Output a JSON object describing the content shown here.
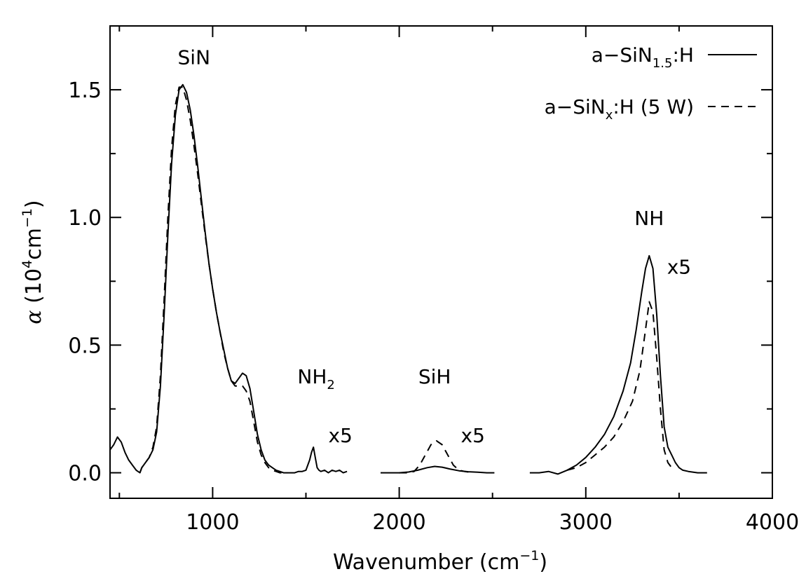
{
  "chart_data": {
    "type": "line",
    "xlabel": "Wavenumber (cm",
    "xlabel_sup": "−1",
    "xlabel_end": ")",
    "ylabel_sym": "α",
    "ylabel": "(10",
    "ylabel_sup1": "4",
    "ylabel_mid": "cm",
    "ylabel_sup2": "−1",
    "ylabel_end": ")",
    "xlim": [
      450,
      4000
    ],
    "ylim": [
      -0.1,
      1.75
    ],
    "x_ticks": [
      1000,
      2000,
      3000,
      4000
    ],
    "x_tick_labels": [
      "1000",
      "2000",
      "3000",
      "4000"
    ],
    "y_ticks": [
      0.0,
      0.5,
      1.0,
      1.5
    ],
    "y_tick_labels": [
      "0.0",
      "0.5",
      "1.0",
      "1.5"
    ],
    "legend": {
      "placement": "top-right",
      "entries": [
        {
          "text": "a−SiN",
          "sub": "1.5",
          "suffix": ":H",
          "style": "solid"
        },
        {
          "text": "a−SiN",
          "sub": "x",
          "suffix": ":H (5 W)",
          "style": "dashed"
        }
      ]
    },
    "annotations": [
      {
        "text": "SiN",
        "sub": "",
        "x": 900,
        "y": 1.6
      },
      {
        "text": "NH",
        "sub": "2",
        "x": 1555,
        "y": 0.35
      },
      {
        "text": "x5",
        "sub": "",
        "x": 1685,
        "y": 0.12
      },
      {
        "text": "SiH",
        "sub": "",
        "x": 2190,
        "y": 0.35
      },
      {
        "text": "x5",
        "sub": "",
        "x": 2395,
        "y": 0.12
      },
      {
        "text": "NH",
        "sub": "",
        "x": 3340,
        "y": 0.97
      },
      {
        "text": "x5",
        "sub": "",
        "x": 3500,
        "y": 0.78
      }
    ],
    "series": [
      {
        "name": "a−SiN1.5:H",
        "style": "solid",
        "segments": [
          {
            "x": [
              450,
              470,
              490,
              510,
              530,
              550,
              570,
              590,
              610,
              620,
              640,
              660,
              680,
              700,
              720,
              740,
              760,
              780,
              800,
              820,
              840,
              860,
              880,
              900,
              920,
              940,
              960,
              980,
              1000,
              1020,
              1040,
              1060,
              1080,
              1100,
              1120,
              1140,
              1160,
              1180,
              1200,
              1220,
              1240,
              1260,
              1280,
              1300,
              1320,
              1340,
              1360,
              1380,
              1400,
              1420,
              1440,
              1460,
              1480,
              1500,
              1520,
              1530,
              1540,
              1550,
              1560,
              1570,
              1580,
              1600,
              1620,
              1640,
              1660,
              1680,
              1700,
              1720
            ],
            "y": [
              0.09,
              0.11,
              0.14,
              0.12,
              0.08,
              0.05,
              0.03,
              0.01,
              0.0,
              0.02,
              0.04,
              0.06,
              0.09,
              0.16,
              0.34,
              0.62,
              0.93,
              1.21,
              1.4,
              1.5,
              1.52,
              1.49,
              1.42,
              1.32,
              1.2,
              1.07,
              0.94,
              0.82,
              0.72,
              0.63,
              0.55,
              0.48,
              0.41,
              0.36,
              0.35,
              0.37,
              0.39,
              0.38,
              0.33,
              0.24,
              0.15,
              0.09,
              0.05,
              0.03,
              0.02,
              0.01,
              0.005,
              0.0,
              0.0,
              0.0,
              0.0,
              0.005,
              0.005,
              0.01,
              0.05,
              0.08,
              0.1,
              0.06,
              0.02,
              0.01,
              0.005,
              0.01,
              0.0,
              0.01,
              0.005,
              0.01,
              0.0,
              0.005
            ]
          },
          {
            "x": [
              1900,
              1950,
              2000,
              2050,
              2100,
              2150,
              2190,
              2230,
              2270,
              2320,
              2370,
              2420,
              2470,
              2510
            ],
            "y": [
              0.0,
              0.0,
              0.0,
              0.003,
              0.01,
              0.02,
              0.025,
              0.022,
              0.015,
              0.008,
              0.004,
              0.002,
              0.0,
              0.0
            ]
          },
          {
            "x": [
              2700,
              2750,
              2800,
              2850,
              2900,
              2950,
              3000,
              3050,
              3100,
              3150,
              3200,
              3240,
              3270,
              3300,
              3320,
              3340,
              3360,
              3380,
              3400,
              3420,
              3440,
              3460,
              3480,
              3500,
              3520,
              3550,
              3600,
              3650
            ],
            "y": [
              0.0,
              0.0,
              0.005,
              -0.005,
              0.01,
              0.03,
              0.06,
              0.1,
              0.15,
              0.22,
              0.32,
              0.43,
              0.56,
              0.71,
              0.8,
              0.85,
              0.8,
              0.62,
              0.38,
              0.18,
              0.1,
              0.07,
              0.04,
              0.02,
              0.01,
              0.005,
              0.0,
              0.0
            ]
          }
        ]
      },
      {
        "name": "a−SiNx:H (5 W)",
        "style": "dashed",
        "segments": [
          {
            "x": [
              610,
              620,
              640,
              660,
              680,
              700,
              720,
              740,
              760,
              780,
              800,
              820,
              840,
              860,
              880,
              900,
              920,
              940,
              960,
              980,
              1000,
              1020,
              1040,
              1060,
              1080,
              1100,
              1120,
              1140,
              1160,
              1180,
              1200,
              1220,
              1240,
              1260,
              1280,
              1300,
              1320,
              1340,
              1360,
              1380,
              1400
            ],
            "y": [
              0.0,
              0.02,
              0.04,
              0.06,
              0.1,
              0.18,
              0.38,
              0.68,
              1.0,
              1.27,
              1.44,
              1.51,
              1.51,
              1.46,
              1.38,
              1.28,
              1.17,
              1.05,
              0.93,
              0.82,
              0.72,
              0.63,
              0.55,
              0.47,
              0.41,
              0.36,
              0.34,
              0.34,
              0.34,
              0.32,
              0.28,
              0.2,
              0.12,
              0.07,
              0.04,
              0.02,
              0.01,
              0.005,
              0.0,
              0.0,
              0.0
            ]
          },
          {
            "x": [
              2000,
              2050,
              2080,
              2110,
              2140,
              2170,
              2200,
              2230,
              2260,
              2290,
              2320,
              2350,
              2400
            ],
            "y": [
              0.0,
              0.0,
              0.005,
              0.03,
              0.07,
              0.11,
              0.125,
              0.11,
              0.07,
              0.03,
              0.01,
              0.005,
              0.0
            ]
          },
          {
            "x": [
              2900,
              2950,
              3000,
              3050,
              3100,
              3150,
              3200,
              3250,
              3290,
              3320,
              3340,
              3360,
              3380,
              3400,
              3420,
              3440,
              3460
            ],
            "y": [
              0.01,
              0.02,
              0.04,
              0.07,
              0.1,
              0.14,
              0.2,
              0.28,
              0.4,
              0.56,
              0.67,
              0.63,
              0.45,
              0.25,
              0.09,
              0.04,
              0.02
            ]
          }
        ]
      }
    ]
  }
}
